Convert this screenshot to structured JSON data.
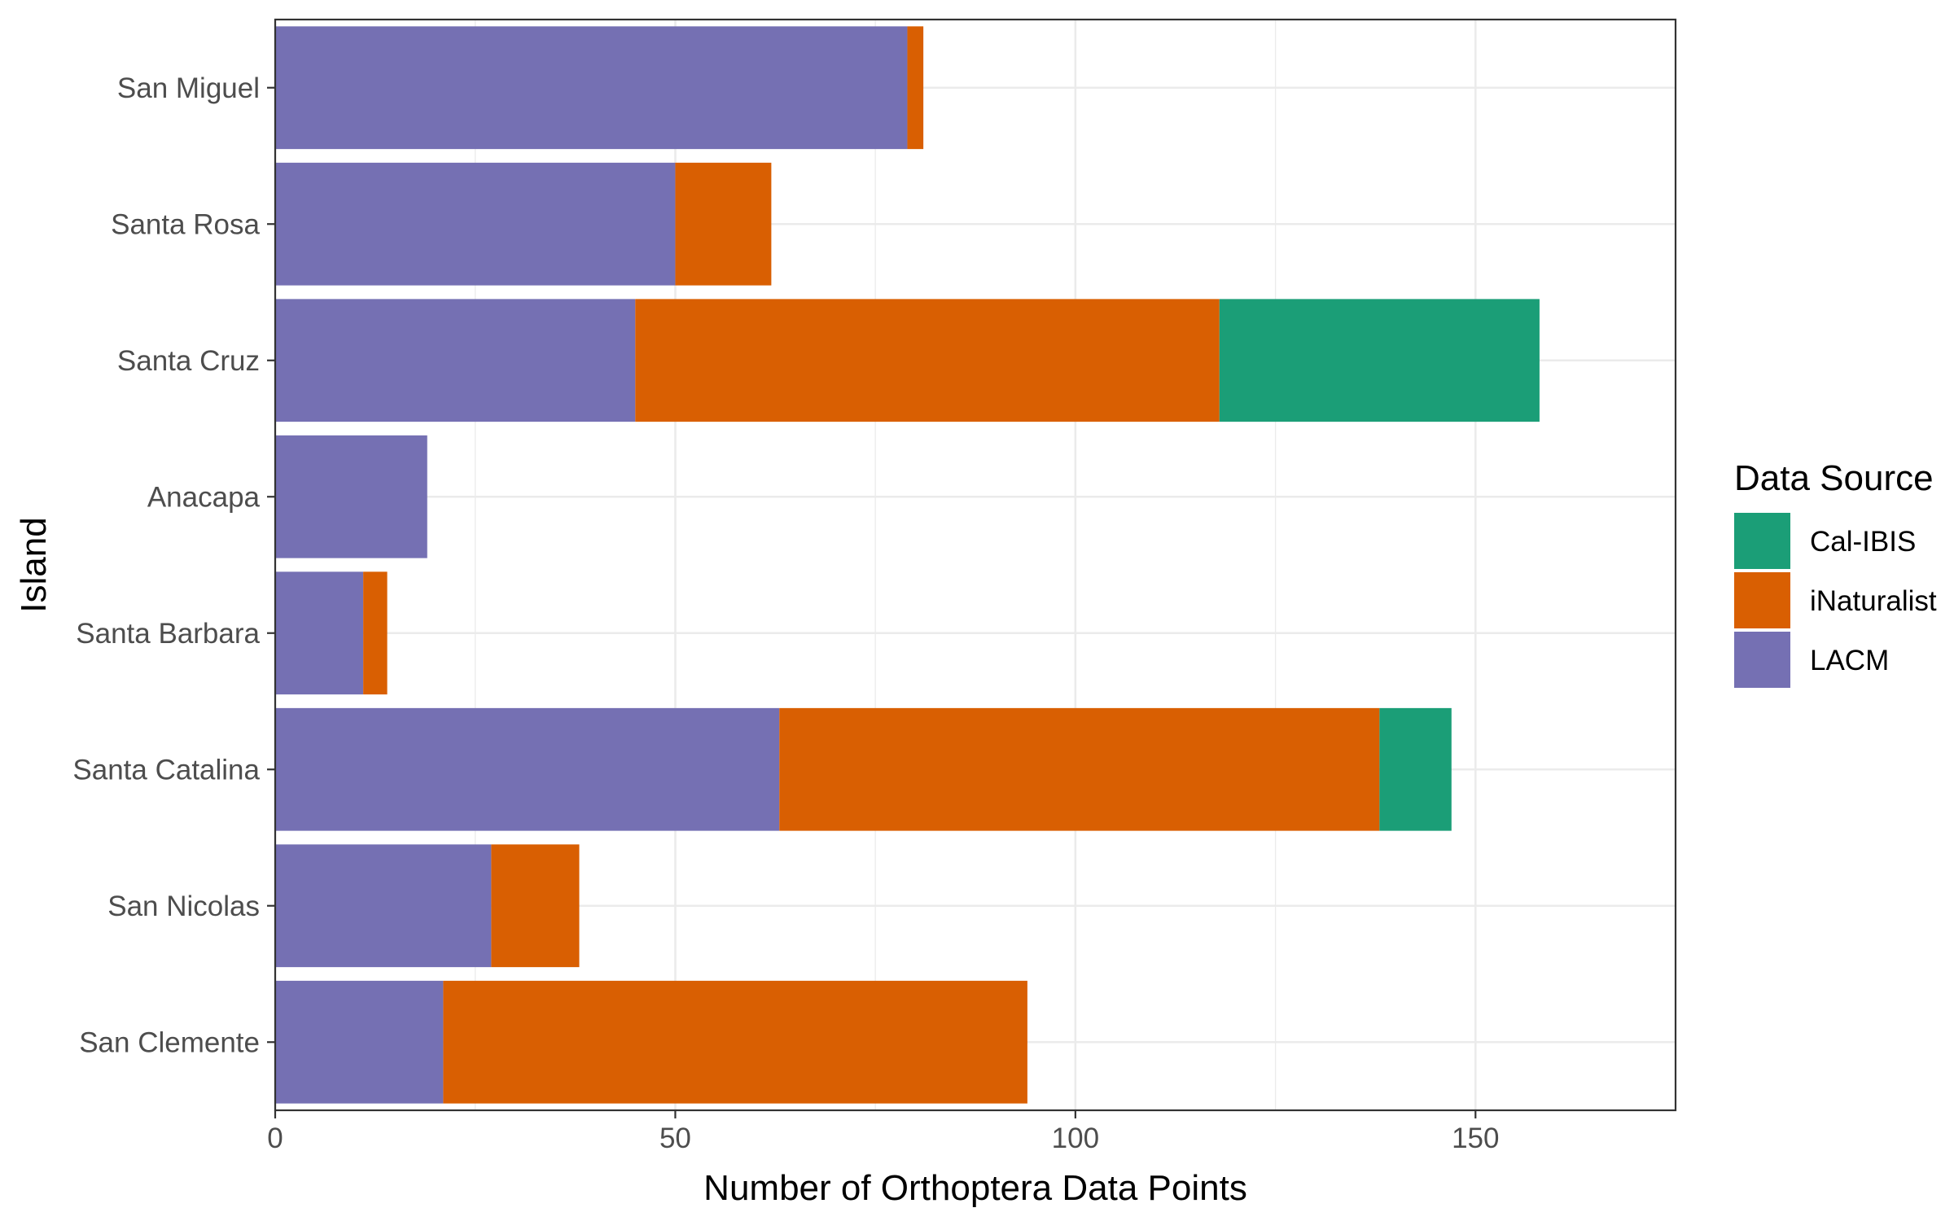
{
  "chart_data": {
    "type": "bar",
    "orientation": "horizontal",
    "stacked": true,
    "categories": [
      "San Miguel",
      "Santa Rosa",
      "Santa Cruz",
      "Anacapa",
      "Santa Barbara",
      "Santa Catalina",
      "San Nicolas",
      "San Clemente"
    ],
    "series": [
      {
        "name": "LACM",
        "color": "#7570b3",
        "values": [
          79,
          50,
          45,
          19,
          11,
          63,
          27,
          21
        ]
      },
      {
        "name": "iNaturalist",
        "color": "#d95f02",
        "values": [
          2,
          12,
          73,
          0,
          3,
          75,
          11,
          73
        ]
      },
      {
        "name": "Cal-IBIS",
        "color": "#1b9e77",
        "values": [
          0,
          0,
          40,
          0,
          0,
          9,
          0,
          0
        ]
      }
    ],
    "legend_order": [
      "Cal-IBIS",
      "iNaturalist",
      "LACM"
    ],
    "xlabel": "Number of Orthoptera Data Points",
    "ylabel": "Island",
    "xlim": [
      0,
      175
    ],
    "x_ticks": [
      0,
      50,
      100,
      150
    ],
    "x_tick_labels": [
      "0",
      "50",
      "100",
      "150"
    ],
    "grid": true,
    "legend_title": "Data Source",
    "legend_position": "right"
  }
}
